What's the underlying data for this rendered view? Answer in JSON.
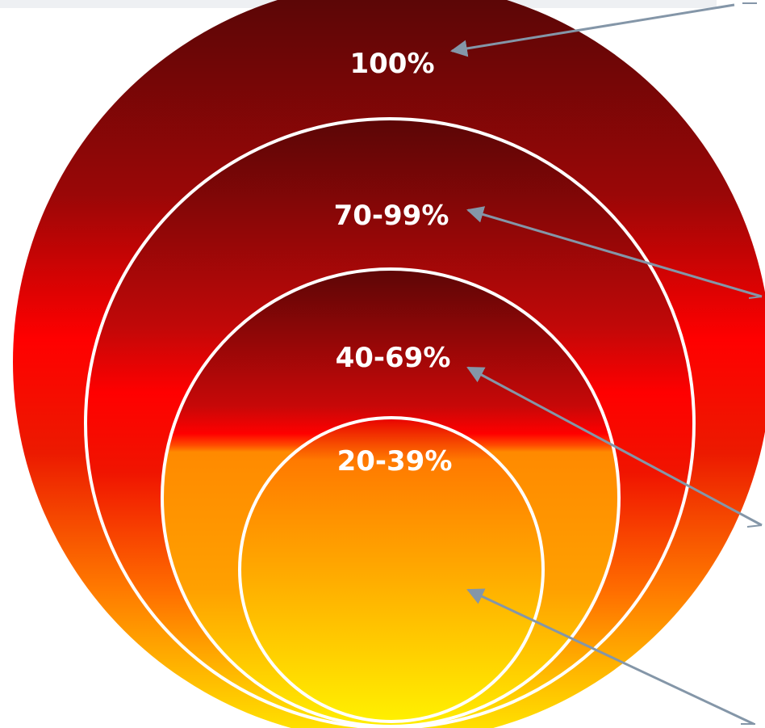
{
  "colors": {
    "dark_red": "#5e0707",
    "red": "#ff0000",
    "orange": "#ff8c00",
    "yellow": "#ffee00",
    "ring_stroke": "#ffffff",
    "arrow": "#8496a8"
  },
  "rings": [
    {
      "id": "outer",
      "label": "100%"
    },
    {
      "id": "second",
      "label": "70-99%"
    },
    {
      "id": "third",
      "label": "40-69%"
    },
    {
      "id": "inner",
      "label": "20-39%"
    }
  ],
  "arrows": [
    {
      "points_to": "100%"
    },
    {
      "points_to": "70-99%"
    },
    {
      "points_to": "40-69%"
    },
    {
      "points_to": "20-39%"
    }
  ]
}
